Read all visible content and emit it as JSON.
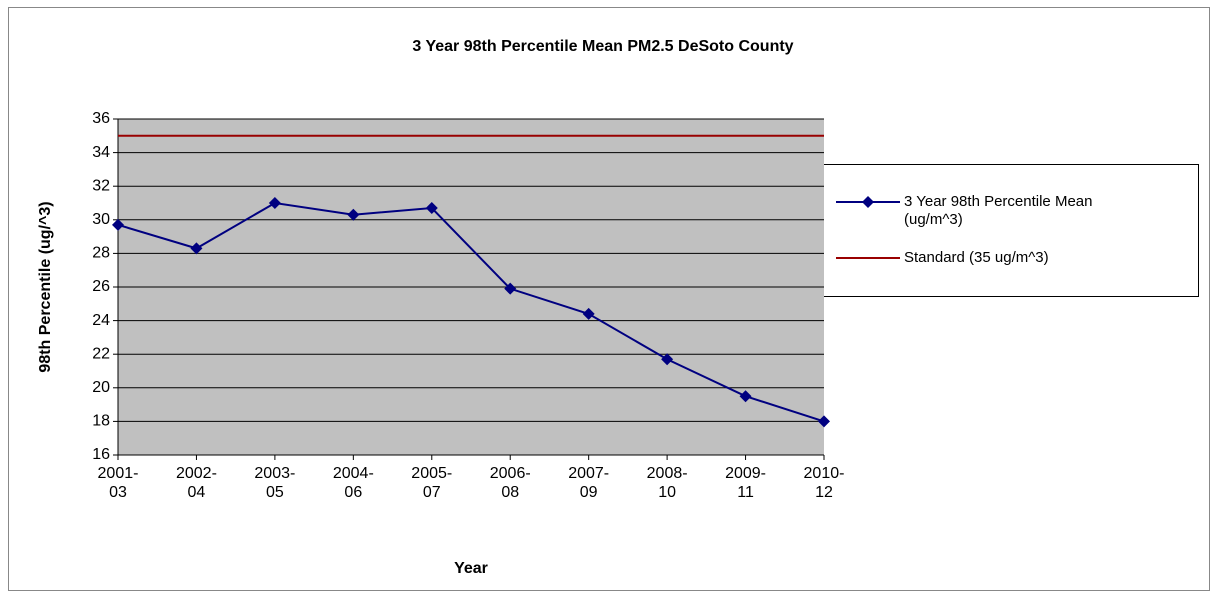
{
  "chart_data": {
    "type": "line",
    "title": "3 Year 98th Percentile Mean PM2.5 DeSoto County",
    "x_label": "Year",
    "y_label": "98th Percentile (ug/^3)",
    "categories": [
      "2001-03",
      "2002-04",
      "2003-05",
      "2004-06",
      "2005-07",
      "2006-08",
      "2007-09",
      "2008-10",
      "2009-11",
      "2010-12"
    ],
    "series": [
      {
        "name": "3 Year 98th Percentile Mean (ug/m^3)",
        "color": "#000080",
        "marker": "diamond",
        "values": [
          29.7,
          28.3,
          31.0,
          30.3,
          30.7,
          25.9,
          24.4,
          21.7,
          19.5,
          18.0
        ]
      },
      {
        "name": "Standard (35 ug/m^3)",
        "color": "#990000",
        "marker": "none",
        "values": [
          35,
          35,
          35,
          35,
          35,
          35,
          35,
          35,
          35,
          35
        ]
      }
    ],
    "ylim": [
      16,
      36
    ],
    "yticks": [
      16,
      18,
      20,
      22,
      24,
      26,
      28,
      30,
      32,
      34,
      36
    ],
    "grid": true,
    "legend": "right",
    "plot_background": "#c0c0c0"
  }
}
